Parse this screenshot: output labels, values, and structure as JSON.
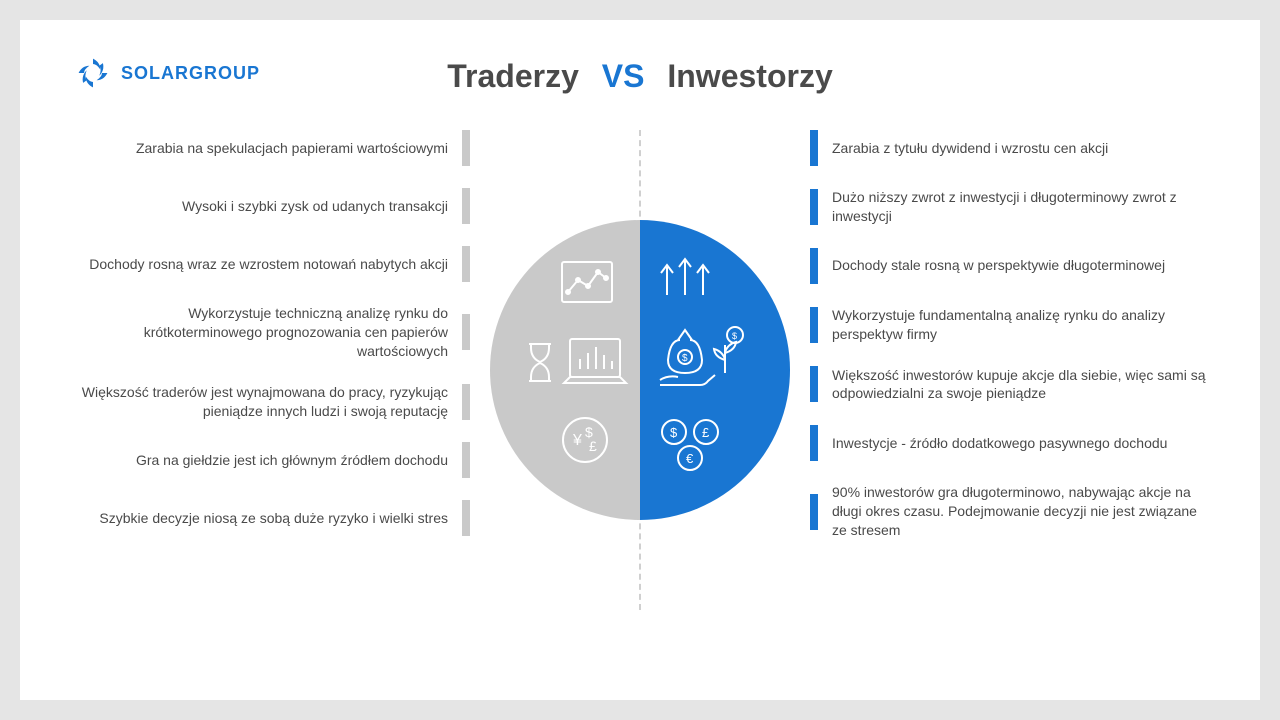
{
  "brand": {
    "name": "SOLARGROUP",
    "logo_color": "#1976d2",
    "text_color": "#1976d2",
    "font_size": 18
  },
  "title": {
    "left": "Traderzy",
    "vs": "VS",
    "right": "Inwestorzy",
    "main_color": "#4a4a4a",
    "vs_color": "#1976d2",
    "font_size": 32
  },
  "colors": {
    "background": "#e5e5e5",
    "card": "#ffffff",
    "left_bar": "#c9c9c9",
    "right_bar": "#1976d2",
    "left_circle": "#c9c9c9",
    "right_circle": "#1976d2",
    "text": "#4a4a4a",
    "divider": "#d0d0d0"
  },
  "left_items": [
    "Zarabia na spekulacjach papierami wartościowymi",
    "Wysoki i szybki zysk od udanych transakcji",
    "Dochody rosną wraz ze wzrostem notowań nabytych akcji",
    "Wykorzystuje techniczną analizę rynku do krótkoterminowego prognozowania cen papierów wartościowych",
    "Większość traderów jest wynajmowana do pracy, ryzykując pieniądze innych ludzi i swoją reputację",
    "Gra na giełdzie jest ich głównym źródłem dochodu",
    "Szybkie decyzje niosą ze sobą duże ryzyko i wielki stres"
  ],
  "right_items": [
    "Zarabia z tytułu dywidend i wzrostu cen akcji",
    "Dużo niższy zwrot z inwestycji i długoterminowy zwrot z inwestycji",
    "Dochody stale rosną w perspektywie długoterminowej",
    "Wykorzystuje fundamentalną analizę rynku do analizy perspektyw firmy",
    "Większość inwestorów kupuje akcje dla siebie, więc sami są odpowiedzialni za swoje pieniądze",
    "Inwestycje - źródło dodatkowego pasywnego dochodu",
    "90% inwestorów gra długoterminowo, nabywając akcje na długi okres czasu. Podejmowanie decyzji nie jest związane ze stresem"
  ],
  "left_icons_desc": "chart-line, hourglass, laptop-bar-chart, currency-symbols",
  "right_icons_desc": "arrows-up, money-bag-growth, hand-coin, currency-circles"
}
